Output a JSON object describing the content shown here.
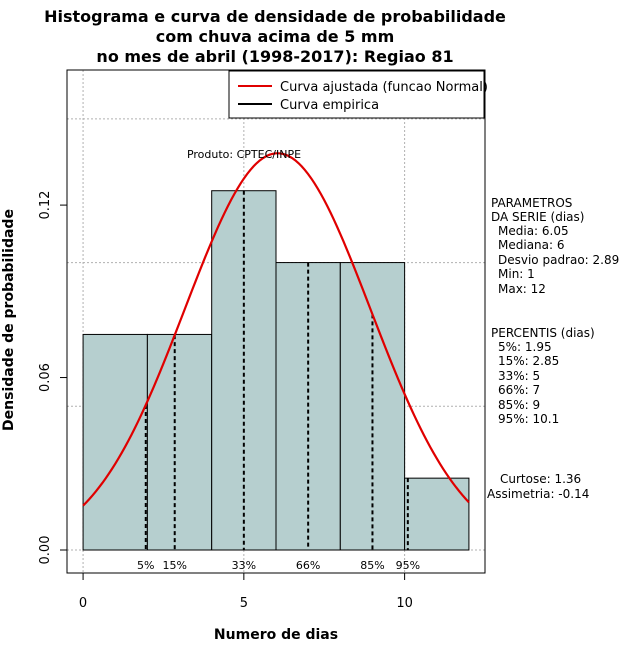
{
  "chart_data": {
    "type": "histogram",
    "title_lines": [
      "Histograma e curva de densidade de probabilidade",
      "com chuva acima de 5 mm",
      "no mes de abril (1998-2017): Regiao 81"
    ],
    "xlabel": "Numero de dias",
    "ylabel": "Densidade de probabilidade",
    "xlim": [
      -0.5,
      12.5
    ],
    "ylim": [
      -0.008,
      0.167
    ],
    "x_ticks": [
      {
        "v": 0,
        "label": "0"
      },
      {
        "v": 5,
        "label": "5"
      },
      {
        "v": 10,
        "label": "10"
      }
    ],
    "y_ticks": [
      {
        "v": 0.0,
        "label": "0.00"
      },
      {
        "v": 0.06,
        "label": "0.06"
      },
      {
        "v": 0.12,
        "label": "0.12"
      }
    ],
    "grid_x": [
      0,
      5,
      10
    ],
    "grid_y": [
      0.0,
      0.05,
      0.1,
      0.15
    ],
    "bins": [
      {
        "start": 0,
        "end": 2,
        "density": 0.075
      },
      {
        "start": 2,
        "end": 4,
        "density": 0.075
      },
      {
        "start": 4,
        "end": 6,
        "density": 0.125
      },
      {
        "start": 6,
        "end": 8,
        "density": 0.1
      },
      {
        "start": 8,
        "end": 10,
        "density": 0.1
      },
      {
        "start": 10,
        "end": 12,
        "density": 0.025
      }
    ],
    "normal_fit": {
      "mean": 6.05,
      "sd": 2.89,
      "x_min": 0,
      "x_max": 12,
      "color": "#e00000"
    },
    "empirical_color": "#000000",
    "percentile_lines": [
      {
        "label": "5%",
        "x": 1.95
      },
      {
        "label": "15%",
        "x": 2.85
      },
      {
        "label": "33%",
        "x": 5
      },
      {
        "label": "66%",
        "x": 7
      },
      {
        "label": "85%",
        "x": 9
      },
      {
        "label": "95%",
        "x": 10.1
      }
    ],
    "legend": [
      {
        "label": "Curva ajustada (funcao Normal)",
        "color": "#e00000"
      },
      {
        "label": "Curva empirica",
        "color": "#000000"
      }
    ],
    "annotation": "Produto: CPTEC/INPE",
    "parametros": {
      "heading_1": "PARAMETROS",
      "heading_2": "DA SERIE (dias)",
      "items": [
        "Media: 6.05",
        "Mediana: 6",
        "Desvio padrao: 2.89",
        "Min: 1",
        "Max: 12"
      ]
    },
    "percentis": {
      "heading": "PERCENTIS (dias)",
      "items": [
        "5%: 1.95",
        "15%: 2.85",
        "33%: 5",
        "66%: 7",
        "85%: 9",
        "95%: 10.1"
      ]
    },
    "shape": {
      "curtose": "Curtose: 1.36",
      "assimetria": "Assimetria: -0.14"
    }
  }
}
